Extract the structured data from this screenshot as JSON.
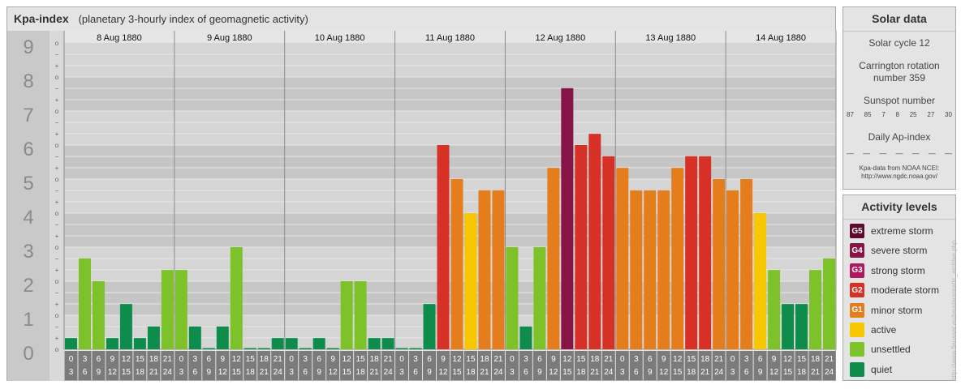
{
  "header": {
    "title": "Kpa-index",
    "subtitle": "(planetary 3-hourly index of geomagnetic activity)"
  },
  "chart_data": {
    "type": "bar",
    "title": "Kpa-index",
    "subtitle": "(planetary 3-hourly index of geomagnetic activity)",
    "ylim": [
      0,
      9
    ],
    "y_ticks": [
      "0",
      "1",
      "2",
      "3",
      "4",
      "5",
      "6",
      "7",
      "8",
      "9"
    ],
    "sub_ticks": [
      "o",
      "+",
      "−",
      "o",
      "+",
      "−",
      "o",
      "+",
      "−",
      "o",
      "+",
      "−",
      "o",
      "+",
      "−",
      "o",
      "+",
      "−",
      "o",
      "+",
      "−",
      "o",
      "+",
      "−",
      "o",
      "+",
      "−",
      "o"
    ],
    "days": [
      "8 Aug 1880",
      "9 Aug 1880",
      "10 Aug 1880",
      "11 Aug 1880",
      "12 Aug 1880",
      "13 Aug 1880",
      "14 Aug 1880"
    ],
    "interval_top": [
      "0",
      "3",
      "6",
      "9",
      "12",
      "15",
      "18",
      "21"
    ],
    "interval_bottom": [
      "3",
      "6",
      "9",
      "12",
      "15",
      "18",
      "21",
      "24"
    ],
    "values": [
      [
        0.33,
        2.67,
        2.0,
        0.33,
        1.33,
        0.33,
        0.67,
        2.33
      ],
      [
        2.33,
        0.67,
        0.0,
        0.67,
        3.0,
        0.0,
        0.0,
        0.33
      ],
      [
        0.33,
        0.0,
        0.33,
        0.0,
        2.0,
        2.0,
        0.33,
        0.33
      ],
      [
        0.0,
        0.0,
        1.33,
        6.0,
        5.0,
        4.0,
        4.67,
        4.67
      ],
      [
        3.0,
        0.67,
        3.0,
        5.33,
        7.67,
        6.0,
        6.33,
        5.67
      ],
      [
        5.33,
        4.67,
        4.67,
        4.67,
        5.33,
        5.67,
        5.67,
        5.0
      ],
      [
        4.67,
        5.0,
        4.0,
        2.33,
        1.33,
        1.33,
        2.33,
        2.67
      ]
    ],
    "colors": {
      "quiet": "#0d8c4c",
      "unsettled": "#7ec229",
      "active": "#f9c700",
      "G1": "#e57d1c",
      "G2": "#d63027",
      "G3": "#b0175c",
      "G4": "#861446",
      "G5": "#5b0b2c"
    },
    "bands": [
      "#d5d5d5",
      "#c6c6c6"
    ]
  },
  "solar": {
    "title": "Solar data",
    "cycle": "Solar cycle 12",
    "carrington_line1": "Carrington rotation",
    "carrington_line2": "number 359",
    "sunspot_title": "Sunspot number",
    "sunspots": [
      "87",
      "85",
      "7",
      "8",
      "25",
      "27",
      "30"
    ],
    "ap_title": "Daily Ap-index",
    "ap_values": [
      "—",
      "—",
      "—",
      "—",
      "—",
      "—",
      "—"
    ],
    "source_line1": "Kpa-data from NOAA NCEI:",
    "source_line2": "http://www.ngdc.noaa.gov/"
  },
  "levels": {
    "title": "Activity levels",
    "items": [
      {
        "code": "G5",
        "label": "extreme storm",
        "color": "#5b0b2c"
      },
      {
        "code": "G4",
        "label": "severe storm",
        "color": "#861446"
      },
      {
        "code": "G3",
        "label": "strong storm",
        "color": "#b0175c"
      },
      {
        "code": "G2",
        "label": "moderate storm",
        "color": "#d63027"
      },
      {
        "code": "G1",
        "label": "minor storm",
        "color": "#e57d1c"
      },
      {
        "code": "",
        "label": "active",
        "color": "#f9c700"
      },
      {
        "code": "",
        "label": "unsettled",
        "color": "#7ec229"
      },
      {
        "code": "",
        "label": "quiet",
        "color": "#0d8c4c"
      }
    ]
  },
  "credit": "http://www.fleusser.eu/tera/aurora/tc_archive.php"
}
